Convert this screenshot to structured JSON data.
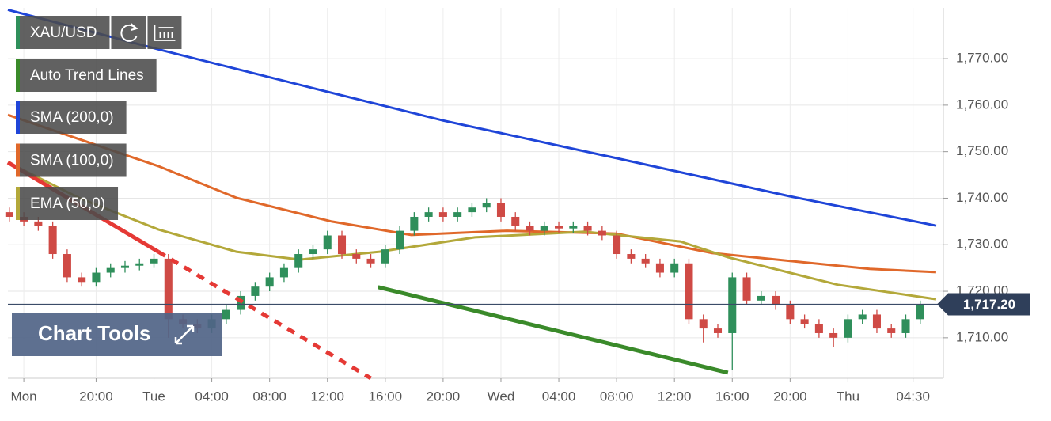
{
  "chart_data": {
    "type": "candlestick",
    "symbol": "XAU/USD",
    "up_color": "#2f8f5b",
    "down_color": "#cf4a45",
    "x": [
      -2,
      -1,
      0,
      1,
      2,
      3,
      4,
      5,
      6,
      7,
      8,
      9,
      10,
      11,
      12,
      13,
      14,
      15,
      16,
      17,
      18,
      19,
      20,
      21,
      22,
      23,
      24,
      25,
      26,
      27,
      28,
      29,
      30,
      31,
      32,
      33,
      34,
      35,
      36,
      37,
      38,
      39,
      40,
      41,
      42,
      43,
      44,
      45,
      46,
      47,
      48,
      49,
      50,
      51,
      52,
      53,
      54,
      55,
      56,
      57,
      58,
      59,
      60,
      61
    ],
    "open": [
      1737,
      1736,
      1735,
      1734,
      1728,
      1723,
      1722,
      1724,
      1725,
      1725.5,
      1726,
      1727,
      1714,
      1713,
      1712,
      1714,
      1716,
      1719,
      1721,
      1723,
      1725,
      1728,
      1729,
      1732,
      1728,
      1727,
      1726,
      1729,
      1733,
      1736,
      1737,
      1736,
      1737,
      1738,
      1739,
      1736,
      1734,
      1733,
      1734,
      1733.5,
      1734,
      1733,
      1732,
      1728,
      1727,
      1726,
      1724,
      1726,
      1714,
      1712,
      1711,
      1723,
      1718,
      1719,
      1717,
      1714,
      1713,
      1711,
      1710,
      1714,
      1715,
      1712,
      1711,
      1714
    ],
    "high": [
      1738,
      1737,
      1736,
      1735,
      1729,
      1724,
      1725,
      1726,
      1726.5,
      1727,
      1728,
      1728,
      1715,
      1714,
      1715,
      1717,
      1720,
      1722,
      1724,
      1726,
      1729,
      1730,
      1733,
      1733,
      1729,
      1728,
      1730,
      1734,
      1737,
      1738,
      1738,
      1738,
      1739,
      1740,
      1740,
      1737,
      1735,
      1735,
      1735,
      1735,
      1735,
      1734,
      1733,
      1729,
      1728,
      1727,
      1727,
      1727,
      1715,
      1713,
      1724,
      1724,
      1720,
      1720,
      1718,
      1715,
      1714,
      1712,
      1715,
      1716,
      1716,
      1713,
      1715,
      1718
    ],
    "low": [
      1735,
      1734,
      1733,
      1727,
      1722,
      1721,
      1721,
      1723,
      1724,
      1724.5,
      1725,
      1710,
      1712,
      1711,
      1711,
      1713,
      1715,
      1718,
      1720,
      1722,
      1724,
      1727,
      1728,
      1727,
      1726,
      1725,
      1725,
      1728,
      1732,
      1735,
      1735,
      1735,
      1736,
      1737,
      1735,
      1733,
      1732,
      1732,
      1732.5,
      1732.5,
      1732,
      1731,
      1727,
      1726,
      1725,
      1723,
      1723,
      1713,
      1709,
      1710,
      1703,
      1717,
      1717,
      1716,
      1713,
      1712,
      1710,
      1708,
      1709,
      1713,
      1711,
      1710,
      1710,
      1713
    ],
    "close": [
      1736,
      1735,
      1734,
      1728,
      1723,
      1722,
      1724,
      1725,
      1725.5,
      1726,
      1727,
      1714,
      1713,
      1712,
      1714,
      1716,
      1719,
      1721,
      1723,
      1725,
      1728,
      1729,
      1732,
      1728,
      1727,
      1726,
      1729,
      1733,
      1736,
      1737,
      1736,
      1737,
      1738,
      1739,
      1736,
      1734,
      1733,
      1734,
      1733.5,
      1734,
      1733,
      1732,
      1728,
      1727,
      1726,
      1724,
      1726,
      1714,
      1712,
      1711,
      1723,
      1718,
      1719,
      1717,
      1714,
      1713,
      1711,
      1710,
      1714,
      1715,
      1712,
      1711,
      1714,
      1717.2
    ],
    "series": [
      {
        "name": "SMA (200,0)",
        "color": "#1f45d8",
        "x": [
          -2.1,
          8.3,
          19.2,
          28,
          40,
          52,
          62.1
        ],
        "values": [
          1780.5,
          1772,
          1763.5,
          1756.7,
          1748.6,
          1740.4,
          1734.1
        ]
      },
      {
        "name": "SMA (100,0)",
        "color": "#e0682a",
        "x": [
          -2.1,
          8.3,
          13.7,
          20.3,
          25.8,
          32.4,
          40,
          46.6,
          57.5,
          62.1
        ],
        "values": [
          1757.9,
          1746.9,
          1740.1,
          1735,
          1732.1,
          1733,
          1732.4,
          1728.2,
          1724.8,
          1724.1
        ]
      },
      {
        "name": "EMA (50,0)",
        "color": "#b3a83a",
        "x": [
          -2.1,
          2.8,
          8.3,
          13.7,
          18.1,
          23.6,
          30.2,
          37.8,
          44.4,
          47.7,
          55.3,
          62.1
        ],
        "values": [
          1747.7,
          1740.1,
          1733.3,
          1728.5,
          1726.8,
          1728.5,
          1731.6,
          1732.8,
          1730.7,
          1727.3,
          1721.4,
          1718.3
        ]
      }
    ],
    "trend_lines": {
      "name": "Auto Trend Lines",
      "color": "#3a8a2a",
      "lines": [
        {
          "color": "#e53935",
          "dashed": false,
          "x": [
            -2.1,
            8.3
          ],
          "values": [
            1747.7,
            1728.5
          ]
        },
        {
          "color": "#e53935",
          "dashed": true,
          "x": [
            8.3,
            23
          ],
          "values": [
            1728.5,
            1701.3
          ]
        },
        {
          "color": "#3a8a2a",
          "dashed": false,
          "x": [
            23.5,
            47.7
          ],
          "values": [
            1720.9,
            1702.5
          ]
        }
      ]
    },
    "last_price": 1717.2,
    "last_price_label": "1,717.20",
    "xlim": [
      -2.1,
      62.6
    ],
    "ylim": [
      1701.3,
      1780.9
    ],
    "yticks": [
      {
        "value": 1710,
        "label": "1,710.00"
      },
      {
        "value": 1720,
        "label": "1,720.00"
      },
      {
        "value": 1730,
        "label": "1,730.00"
      },
      {
        "value": 1740,
        "label": "1,740.00"
      },
      {
        "value": 1750,
        "label": "1,750.00"
      },
      {
        "value": 1760,
        "label": "1,760.00"
      },
      {
        "value": 1770,
        "label": "1,770.00"
      }
    ],
    "xticks": [
      {
        "value": -1,
        "label": "Mon"
      },
      {
        "value": 4,
        "label": "20:00"
      },
      {
        "value": 8,
        "label": "Tue"
      },
      {
        "value": 12,
        "label": "04:00"
      },
      {
        "value": 16,
        "label": "08:00"
      },
      {
        "value": 20,
        "label": "12:00"
      },
      {
        "value": 24,
        "label": "16:00"
      },
      {
        "value": 28,
        "label": "20:00"
      },
      {
        "value": 32,
        "label": "Wed"
      },
      {
        "value": 36,
        "label": "04:00"
      },
      {
        "value": 40,
        "label": "08:00"
      },
      {
        "value": 44,
        "label": "12:00"
      },
      {
        "value": 48,
        "label": "16:00"
      },
      {
        "value": 52,
        "label": "20:00"
      },
      {
        "value": 56,
        "label": "Thu"
      },
      {
        "value": 60.5,
        "label": "04:30"
      }
    ],
    "grid": true,
    "chart_tools": "Chart Tools"
  }
}
